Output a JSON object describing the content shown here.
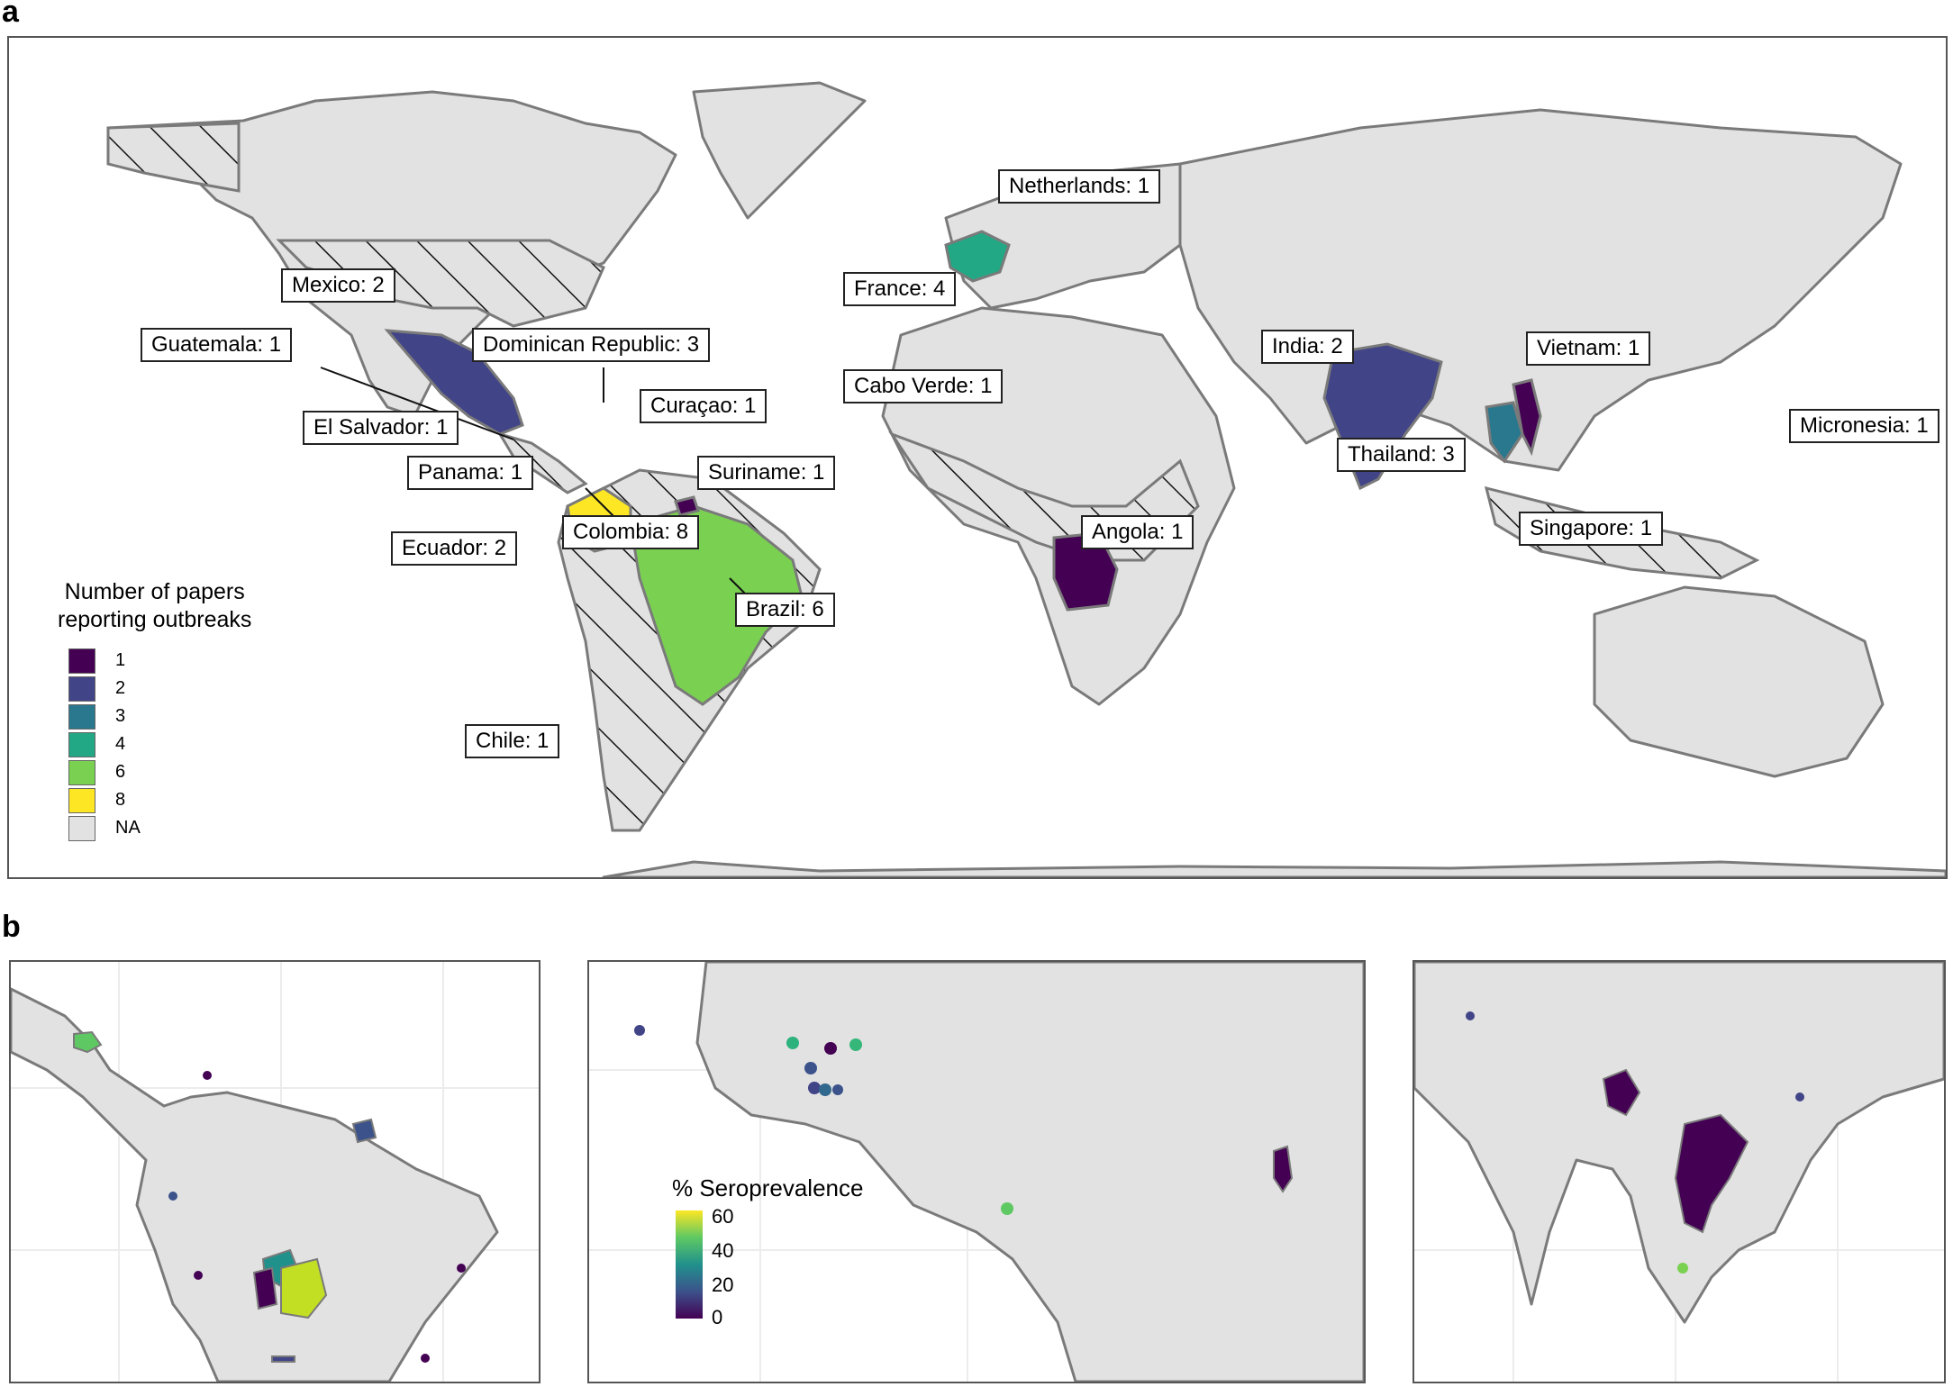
{
  "panel_a": {
    "letter": "a",
    "callouts": [
      {
        "id": "netherlands",
        "text": "Netherlands: 1"
      },
      {
        "id": "france",
        "text": "France: 4"
      },
      {
        "id": "mexico",
        "text": "Mexico: 2"
      },
      {
        "id": "guatemala",
        "text": "Guatemala: 1"
      },
      {
        "id": "dominican",
        "text": "Dominican Republic: 3"
      },
      {
        "id": "curacao",
        "text": "Curaçao: 1"
      },
      {
        "id": "elsalvador",
        "text": "El Salvador: 1"
      },
      {
        "id": "panama",
        "text": "Panama: 1"
      },
      {
        "id": "suriname",
        "text": "Suriname: 1"
      },
      {
        "id": "ecuador",
        "text": "Ecuador: 2"
      },
      {
        "id": "colombia",
        "text": "Colombia: 8"
      },
      {
        "id": "brazil",
        "text": "Brazil: 6"
      },
      {
        "id": "chile",
        "text": "Chile: 1"
      },
      {
        "id": "caboverde",
        "text": "Cabo Verde: 1"
      },
      {
        "id": "angola",
        "text": "Angola: 1"
      },
      {
        "id": "india",
        "text": "India: 2"
      },
      {
        "id": "vietnam",
        "text": "Vietnam: 1"
      },
      {
        "id": "thailand",
        "text": "Thailand: 3"
      },
      {
        "id": "singapore",
        "text": "Singapore: 1"
      },
      {
        "id": "micronesia",
        "text": "Micronesia: 1"
      }
    ],
    "legend": {
      "title_line1": "Number of papers",
      "title_line2": "reporting outbreaks",
      "items": [
        {
          "label": "1",
          "color": "#440154"
        },
        {
          "label": "2",
          "color": "#414487"
        },
        {
          "label": "3",
          "color": "#2a788e"
        },
        {
          "label": "4",
          "color": "#22a884"
        },
        {
          "label": "6",
          "color": "#7ad151"
        },
        {
          "label": "8",
          "color": "#fde725"
        },
        {
          "label": "NA",
          "color": "#e2e2e2"
        }
      ]
    }
  },
  "panel_b": {
    "letter": "b",
    "legend": {
      "title": "% Seroprevalence",
      "ticks": [
        "60",
        "40",
        "20",
        "0"
      ]
    }
  },
  "colors": {
    "land": "#e2e2e2",
    "border": "#7a7a7a",
    "hatch": "#111111"
  }
}
